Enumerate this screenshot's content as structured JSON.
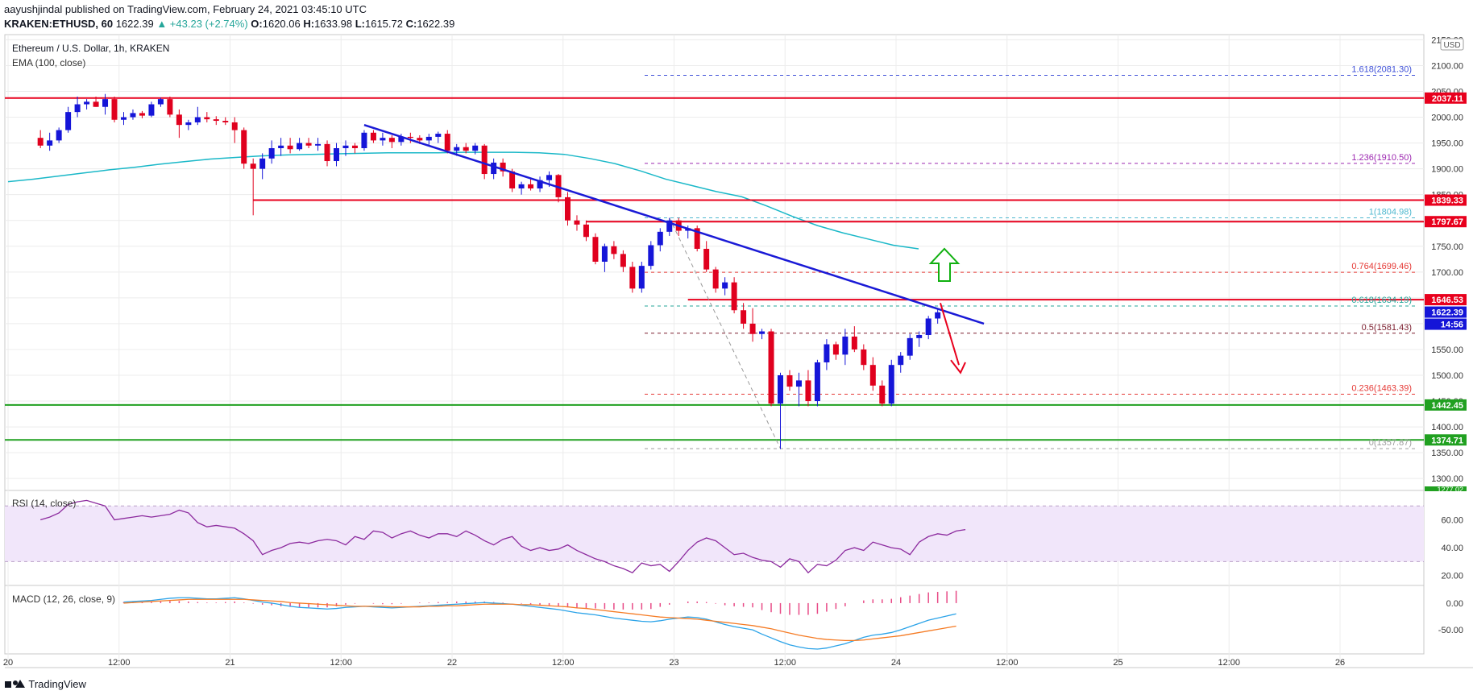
{
  "header": {
    "line1": "aayushjindal published on TradingView.com, February 24, 2021 03:45:10 UTC",
    "symbol": "KRAKEN:ETHUSD, 60",
    "last": "1622.39",
    "change": "▲ +43.23 (+2.74%)",
    "o_label": "O:",
    "o": "1620.06",
    "h_label": "H:",
    "h": "1633.98",
    "l_label": "L:",
    "l": "1615.72",
    "c_label": "C:",
    "c": "1622.39"
  },
  "legend": {
    "title": "Ethereum / U.S. Dollar, 1h, KRAKEN",
    "ema": "EMA (100, close)",
    "rsi": "RSI (14, close)",
    "macd": "MACD (12, 26, close, 9)"
  },
  "footer": {
    "brand": "TradingView"
  },
  "colors": {
    "up": "#1515d8",
    "down": "#e0001e",
    "ema": "#1ab8c8",
    "trend": "#1a1ad6",
    "res": "#e8001d",
    "sup": "#20a020",
    "rsi": "#8c2a9e",
    "macd": "#2ba3e8",
    "signal": "#f57b24"
  },
  "chart_data": [
    {
      "type": "candlestick",
      "title": "Ethereum / U.S. Dollar, 1h, KRAKEN",
      "currency": "USD",
      "ylim": [
        1280,
        2160
      ],
      "y_ticks": [
        1300,
        1350,
        1400,
        1450,
        1500,
        1550,
        1600,
        1650,
        1700,
        1750,
        1800,
        1850,
        1900,
        1950,
        2000,
        2050,
        2100,
        2150
      ],
      "x_ticks": [
        "20",
        "12:00",
        "21",
        "12:00",
        "22",
        "12:00",
        "23",
        "12:00",
        "24",
        "12:00",
        "25",
        "12:00",
        "26"
      ],
      "ema100": [
        1875,
        1880,
        1886,
        1892,
        1898,
        1903,
        1909,
        1914,
        1919,
        1922,
        1925,
        1927,
        1928,
        1929,
        1930,
        1931,
        1931,
        1931,
        1932,
        1932,
        1932,
        1931,
        1928,
        1920,
        1910,
        1896,
        1880,
        1868,
        1856,
        1846,
        1828,
        1808,
        1790,
        1776,
        1764,
        1752,
        1745
      ],
      "candles": [
        [
          1960,
          1975,
          1940,
          1945
        ],
        [
          1945,
          1970,
          1935,
          1955
        ],
        [
          1955,
          1980,
          1950,
          1975
        ],
        [
          1975,
          2020,
          1970,
          2010
        ],
        [
          2010,
          2040,
          2000,
          2025
        ],
        [
          2025,
          2035,
          2015,
          2030
        ],
        [
          2030,
          2040,
          2020,
          2020
        ],
        [
          2020,
          2045,
          2005,
          2035
        ],
        [
          2035,
          2040,
          1990,
          1995
        ],
        [
          1995,
          2010,
          1985,
          2000
        ],
        [
          2000,
          2015,
          1995,
          2008
        ],
        [
          2008,
          2012,
          1998,
          2003
        ],
        [
          2003,
          2030,
          2000,
          2025
        ],
        [
          2025,
          2038,
          2020,
          2035
        ],
        [
          2035,
          2040,
          2000,
          2005
        ],
        [
          2005,
          2015,
          1960,
          1985
        ],
        [
          1985,
          1995,
          1975,
          1990
        ],
        [
          1990,
          2020,
          1985,
          2000
        ],
        [
          2000,
          2010,
          1990,
          1996
        ],
        [
          1996,
          2002,
          1985,
          1993
        ],
        [
          1993,
          2000,
          1985,
          1990
        ],
        [
          1990,
          2000,
          1950,
          1975
        ],
        [
          1975,
          1980,
          1900,
          1910
        ],
        [
          1910,
          1920,
          1810,
          1900
        ],
        [
          1900,
          1930,
          1880,
          1920
        ],
        [
          1920,
          1955,
          1910,
          1940
        ],
        [
          1940,
          1960,
          1925,
          1945
        ],
        [
          1945,
          1960,
          1930,
          1938
        ],
        [
          1938,
          1960,
          1935,
          1950
        ],
        [
          1950,
          1960,
          1940,
          1945
        ],
        [
          1945,
          1960,
          1935,
          1948
        ],
        [
          1948,
          1955,
          1905,
          1915
        ],
        [
          1915,
          1950,
          1905,
          1940
        ],
        [
          1940,
          1955,
          1925,
          1945
        ],
        [
          1945,
          1950,
          1930,
          1940
        ],
        [
          1940,
          1975,
          1935,
          1970
        ],
        [
          1970,
          1975,
          1950,
          1955
        ],
        [
          1955,
          1970,
          1945,
          1960
        ],
        [
          1960,
          1965,
          1940,
          1952
        ],
        [
          1952,
          1968,
          1945,
          1962
        ],
        [
          1962,
          1970,
          1950,
          1960
        ],
        [
          1960,
          1965,
          1948,
          1955
        ],
        [
          1955,
          1968,
          1945,
          1962
        ],
        [
          1962,
          1972,
          1950,
          1968
        ],
        [
          1968,
          1975,
          1930,
          1935
        ],
        [
          1935,
          1948,
          1925,
          1942
        ],
        [
          1942,
          1950,
          1930,
          1935
        ],
        [
          1935,
          1950,
          1928,
          1945
        ],
        [
          1945,
          1948,
          1880,
          1890
        ],
        [
          1890,
          1920,
          1880,
          1912
        ],
        [
          1912,
          1920,
          1885,
          1895
        ],
        [
          1895,
          1900,
          1855,
          1862
        ],
        [
          1862,
          1875,
          1850,
          1870
        ],
        [
          1870,
          1880,
          1858,
          1862
        ],
        [
          1862,
          1885,
          1855,
          1878
        ],
        [
          1878,
          1895,
          1865,
          1888
        ],
        [
          1888,
          1890,
          1835,
          1845
        ],
        [
          1845,
          1855,
          1790,
          1800
        ],
        [
          1800,
          1810,
          1780,
          1792
        ],
        [
          1792,
          1800,
          1760,
          1768
        ],
        [
          1768,
          1775,
          1715,
          1720
        ],
        [
          1720,
          1755,
          1700,
          1750
        ],
        [
          1750,
          1760,
          1725,
          1735
        ],
        [
          1735,
          1742,
          1700,
          1710
        ],
        [
          1710,
          1720,
          1660,
          1668
        ],
        [
          1668,
          1720,
          1660,
          1712
        ],
        [
          1712,
          1760,
          1705,
          1752
        ],
        [
          1752,
          1785,
          1740,
          1778
        ],
        [
          1778,
          1805,
          1770,
          1800
        ],
        [
          1800,
          1805,
          1770,
          1780
        ],
        [
          1780,
          1790,
          1765,
          1785
        ],
        [
          1785,
          1790,
          1740,
          1745
        ],
        [
          1745,
          1760,
          1700,
          1705
        ],
        [
          1705,
          1710,
          1660,
          1668
        ],
        [
          1668,
          1690,
          1655,
          1680
        ],
        [
          1680,
          1690,
          1620,
          1626
        ],
        [
          1626,
          1640,
          1590,
          1600
        ],
        [
          1600,
          1630,
          1565,
          1580
        ],
        [
          1580,
          1590,
          1570,
          1585
        ],
        [
          1585,
          1590,
          1440,
          1445
        ],
        [
          1445,
          1505,
          1357,
          1500
        ],
        [
          1500,
          1510,
          1470,
          1478
        ],
        [
          1478,
          1505,
          1440,
          1490
        ],
        [
          1490,
          1510,
          1440,
          1450
        ],
        [
          1450,
          1530,
          1440,
          1525
        ],
        [
          1525,
          1570,
          1510,
          1560
        ],
        [
          1560,
          1565,
          1530,
          1540
        ],
        [
          1540,
          1590,
          1520,
          1575
        ],
        [
          1575,
          1595,
          1545,
          1550
        ],
        [
          1550,
          1560,
          1510,
          1520
        ],
        [
          1520,
          1535,
          1470,
          1480
        ],
        [
          1480,
          1490,
          1440,
          1445
        ],
        [
          1445,
          1530,
          1440,
          1520
        ],
        [
          1520,
          1545,
          1505,
          1538
        ],
        [
          1538,
          1580,
          1530,
          1572
        ],
        [
          1572,
          1585,
          1555,
          1578
        ],
        [
          1578,
          1615,
          1570,
          1610
        ],
        [
          1610,
          1630,
          1600,
          1622
        ]
      ],
      "horizontal_levels": [
        {
          "label": "2037.11",
          "value": 2037.11,
          "style": "resistance",
          "start": 0
        },
        {
          "label": "1839.33",
          "value": 1839.33,
          "style": "resistance",
          "start": 23
        },
        {
          "label": "1797.67",
          "value": 1797.67,
          "style": "resistance",
          "start": 59
        },
        {
          "label": "1646.53",
          "value": 1646.53,
          "style": "resistance",
          "start": 70
        },
        {
          "label": "1442.45",
          "value": 1442.45,
          "style": "support",
          "start": 0
        },
        {
          "label": "1374.71",
          "value": 1374.71,
          "style": "support",
          "start": 0
        }
      ],
      "fibonacci": [
        {
          "label": "1.618(2081.30)",
          "value": 2081.3,
          "color": "#3f51d8"
        },
        {
          "label": "1.236(1910.50)",
          "value": 1910.5,
          "color": "#9c27b0"
        },
        {
          "label": "1(1804.98)",
          "value": 1804.98,
          "color": "#4fb8cf"
        },
        {
          "label": "0.764(1699.46)",
          "value": 1699.46,
          "color": "#e53935"
        },
        {
          "label": "0.618(1634.19)",
          "value": 1634.19,
          "color": "#26a69a"
        },
        {
          "label": "0.5(1581.43)",
          "value": 1581.43,
          "color": "#7b1f2f"
        },
        {
          "label": "0.236(1463.39)",
          "value": 1463.39,
          "color": "#e53935"
        },
        {
          "label": "0(1357.87)",
          "value": 1357.87,
          "color": "#9e9e9e"
        }
      ],
      "last_price": {
        "label": "1622.39",
        "value": 1622.39
      },
      "countdown": "14:56",
      "partial_label": "1277.02"
    },
    {
      "type": "line",
      "name": "RSI (14, close)",
      "ylim": [
        14,
        80
      ],
      "y_ticks": [
        20,
        40,
        60
      ],
      "band": [
        30,
        70
      ],
      "values": [
        60,
        62,
        65,
        71,
        73,
        74,
        72,
        70,
        60,
        61,
        62,
        63,
        62,
        63,
        64,
        67,
        65,
        58,
        55,
        56,
        55,
        54,
        50,
        45,
        35,
        38,
        40,
        43,
        44,
        43,
        45,
        46,
        45,
        42,
        48,
        46,
        52,
        51,
        47,
        50,
        52,
        49,
        47,
        50,
        50,
        48,
        52,
        49,
        45,
        42,
        46,
        48,
        41,
        38,
        40,
        38,
        39,
        42,
        38,
        35,
        32,
        30,
        27,
        25,
        22,
        29,
        27,
        28,
        23,
        30,
        38,
        44,
        47,
        45,
        40,
        35,
        36,
        33,
        31,
        30,
        26,
        32,
        30,
        22,
        28,
        27,
        31,
        38,
        40,
        38,
        44,
        42,
        40,
        39,
        35,
        44,
        48,
        50,
        49,
        52,
        53
      ]
    },
    {
      "type": "bar+line",
      "name": "MACD (12, 26, close, 9)",
      "ylim": [
        -95,
        30
      ],
      "y_ticks": [
        0,
        -50
      ],
      "macd": [
        2,
        3,
        4,
        5,
        7,
        9,
        10,
        10,
        9,
        8,
        8,
        9,
        10,
        8,
        5,
        2,
        0,
        -3,
        -6,
        -8,
        -9,
        -10,
        -11,
        -10,
        -8,
        -7,
        -6,
        -7,
        -8,
        -9,
        -8,
        -7,
        -6,
        -5,
        -4,
        -3,
        -2,
        -1,
        0,
        1,
        0,
        -1,
        -2,
        -4,
        -6,
        -8,
        -10,
        -12,
        -15,
        -18,
        -20,
        -22,
        -25,
        -28,
        -30,
        -32,
        -34,
        -35,
        -33,
        -30,
        -28,
        -26,
        -27,
        -30,
        -35,
        -40,
        -44,
        -47,
        -50,
        -58,
        -65,
        -72,
        -78,
        -82,
        -85,
        -86,
        -84,
        -80,
        -76,
        -70,
        -64,
        -60,
        -58,
        -55,
        -50,
        -44,
        -38,
        -32,
        -28,
        -24,
        -20
      ],
      "signal": [
        0,
        1,
        2,
        3,
        4,
        5,
        6,
        7,
        7,
        7,
        7,
        7,
        7,
        7,
        6,
        5,
        4,
        3,
        1,
        0,
        -1,
        -2,
        -3,
        -4,
        -5,
        -6,
        -6,
        -6,
        -6,
        -7,
        -7,
        -7,
        -7,
        -6,
        -6,
        -5,
        -5,
        -4,
        -3,
        -2,
        -2,
        -2,
        -2,
        -3,
        -3,
        -4,
        -5,
        -6,
        -7,
        -9,
        -10,
        -12,
        -14,
        -16,
        -18,
        -20,
        -22,
        -24,
        -26,
        -27,
        -28,
        -29,
        -30,
        -32,
        -34,
        -36,
        -38,
        -40,
        -42,
        -45,
        -48,
        -52,
        -56,
        -60,
        -63,
        -66,
        -68,
        -69,
        -70,
        -70,
        -69,
        -67,
        -65,
        -63,
        -61,
        -58,
        -55,
        -52,
        -49,
        -46,
        -43
      ],
      "histogram": [
        2,
        2,
        2,
        2,
        3,
        4,
        4,
        3,
        2,
        1,
        1,
        2,
        3,
        1,
        -1,
        -3,
        -4,
        -6,
        -7,
        -8,
        -8,
        -8,
        -8,
        -6,
        -3,
        -1,
        0,
        -1,
        -2,
        -2,
        -1,
        0,
        1,
        1,
        2,
        2,
        3,
        3,
        3,
        3,
        2,
        1,
        0,
        -1,
        -3,
        -4,
        -5,
        -6,
        -8,
        -9,
        -10,
        -10,
        -11,
        -12,
        -12,
        -12,
        -12,
        -11,
        -7,
        -3,
        0,
        3,
        3,
        2,
        -1,
        -4,
        -6,
        -7,
        -8,
        -13,
        -17,
        -20,
        -22,
        -22,
        -22,
        -20,
        -16,
        -11,
        -6,
        0,
        5,
        7,
        7,
        8,
        11,
        14,
        17,
        20,
        21,
        22,
        23
      ]
    }
  ]
}
